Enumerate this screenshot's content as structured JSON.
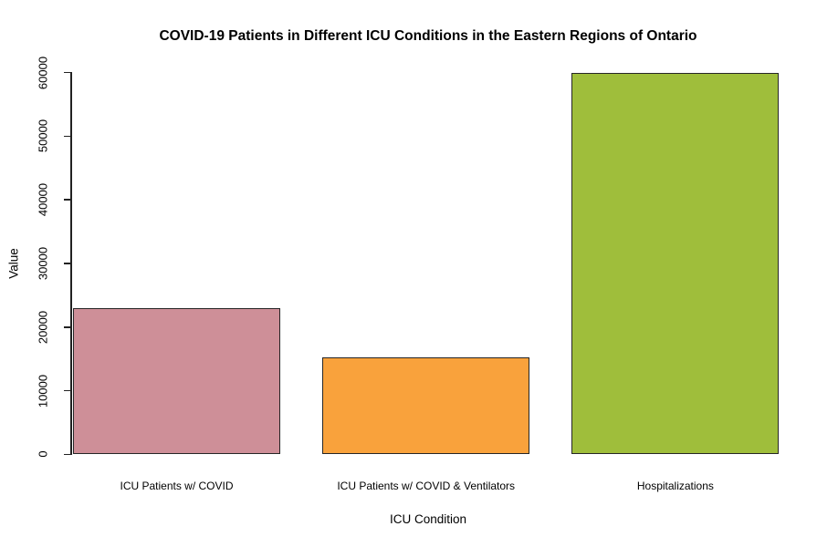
{
  "chart_data": {
    "type": "bar",
    "title": "COVID-19 Patients in Different ICU Conditions in the Eastern Regions of Ontario",
    "xlabel": "ICU Condition",
    "ylabel": "Value",
    "categories": [
      "ICU Patients w/ COVID",
      "ICU Patients w/ COVID & Ventilators",
      "Hospitalizations"
    ],
    "values": [
      23000,
      15300,
      60000
    ],
    "bar_colors": [
      "#ce8f98",
      "#f9a23c",
      "#9fbe3b"
    ],
    "bar_border_color": "#262626",
    "axis_color": "#222222",
    "ylim": [
      0,
      60000
    ],
    "yticks": [
      0,
      10000,
      20000,
      30000,
      40000,
      50000,
      60000
    ],
    "grid": false,
    "legend_position": "none"
  }
}
